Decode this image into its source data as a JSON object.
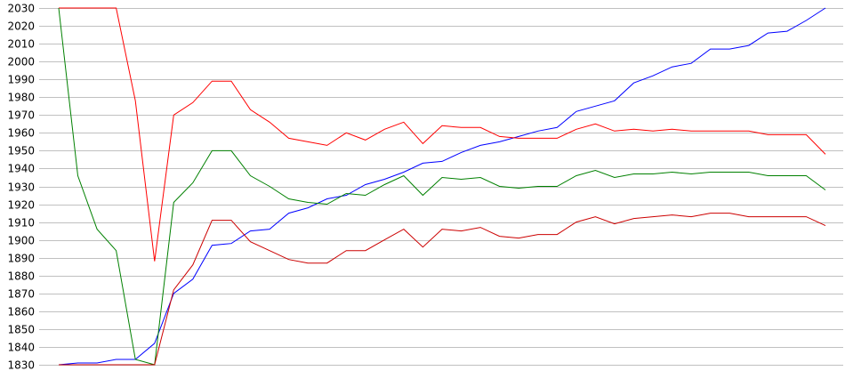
{
  "chart_data": {
    "type": "line",
    "title": "",
    "xlabel": "",
    "ylabel": "",
    "ylim": [
      1830,
      2030
    ],
    "yticks": [
      2030,
      2020,
      2010,
      2000,
      1990,
      1980,
      1970,
      1960,
      1950,
      1940,
      1930,
      1920,
      1910,
      1900,
      1890,
      1880,
      1870,
      1860,
      1850,
      1840,
      1830
    ],
    "grid": true,
    "legend": "none",
    "x": [
      0,
      1,
      2,
      3,
      4,
      5,
      6,
      7,
      8,
      9,
      10,
      11,
      12,
      13,
      14,
      15,
      16,
      17,
      18,
      19,
      20,
      21,
      22,
      23,
      24,
      25,
      26,
      27,
      28,
      29,
      30,
      31,
      32,
      33,
      34,
      35,
      36,
      37,
      38,
      39,
      40
    ],
    "series": [
      {
        "color": "#0000ff",
        "values": [
          1830,
          1831,
          1831,
          1833,
          1833,
          1842,
          1870,
          1878,
          1897,
          1898,
          1905,
          1906,
          1915,
          1918,
          1923,
          1925,
          1931,
          1934,
          1938,
          1943,
          1944,
          1949,
          1953,
          1955,
          1958,
          1961,
          1963,
          1972,
          1975,
          1978,
          1988,
          1992,
          1997,
          1999,
          2007,
          2007,
          2009,
          2016,
          2017,
          2023,
          2030
        ]
      },
      {
        "color": "#ff0000",
        "values": [
          2030,
          2030,
          2030,
          2030,
          1978,
          1888,
          1970,
          1977,
          1989,
          1989,
          1973,
          1966,
          1957,
          1955,
          1953,
          1960,
          1956,
          1962,
          1966,
          1954,
          1964,
          1963,
          1963,
          1958,
          1957,
          1957,
          1957,
          1962,
          1965,
          1961,
          1962,
          1961,
          1962,
          1961,
          1961,
          1961,
          1961,
          1959,
          1959,
          1959,
          1948
        ]
      },
      {
        "color": "#008000",
        "values": [
          2030,
          1936,
          1906,
          1894,
          1833,
          1830,
          1921,
          1932,
          1950,
          1950,
          1936,
          1930,
          1923,
          1921,
          1920,
          1926,
          1925,
          1931,
          1936,
          1925,
          1935,
          1934,
          1935,
          1930,
          1929,
          1930,
          1930,
          1936,
          1939,
          1935,
          1937,
          1937,
          1938,
          1937,
          1938,
          1938,
          1938,
          1936,
          1936,
          1936,
          1928
        ]
      },
      {
        "color": "#cc0000",
        "values": [
          1830,
          1830,
          1830,
          1830,
          1830,
          1830,
          1872,
          1886,
          1911,
          1911,
          1899,
          1894,
          1889,
          1887,
          1887,
          1894,
          1894,
          1900,
          1906,
          1896,
          1906,
          1905,
          1907,
          1902,
          1901,
          1903,
          1903,
          1910,
          1913,
          1909,
          1912,
          1913,
          1914,
          1913,
          1915,
          1915,
          1913,
          1913,
          1913,
          1913,
          1908
        ]
      }
    ]
  }
}
